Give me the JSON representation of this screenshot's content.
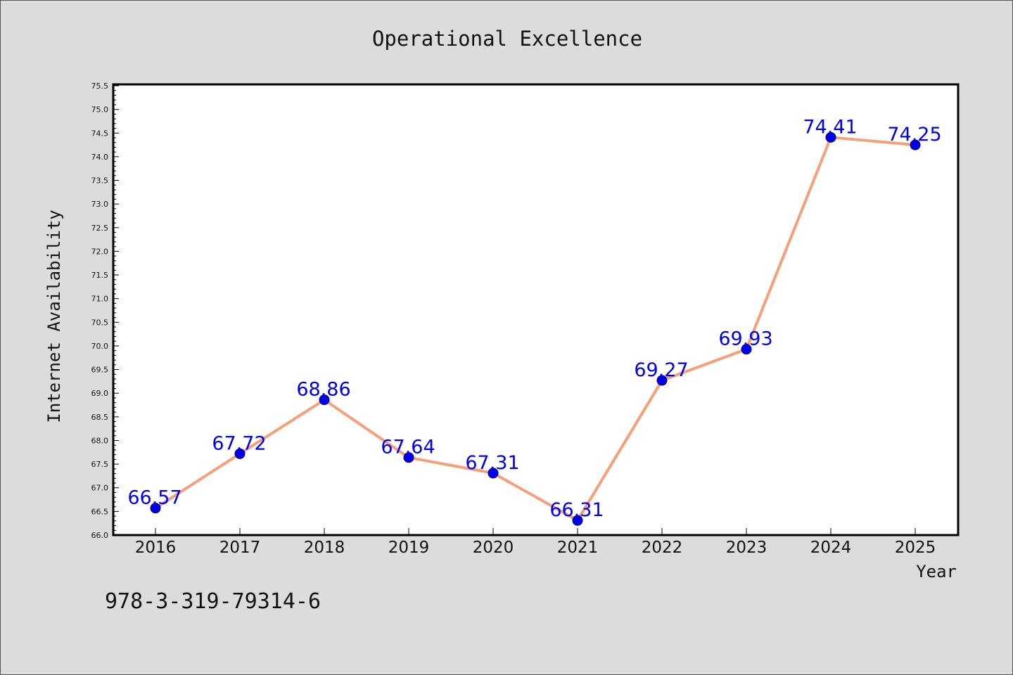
{
  "chart_data": {
    "type": "line",
    "title": "Operational Excellence",
    "xlabel": "Year",
    "ylabel": "Internet Availability",
    "x": [
      "2016",
      "2017",
      "2018",
      "2019",
      "2020",
      "2021",
      "2022",
      "2023",
      "2024",
      "2025"
    ],
    "series": [
      {
        "values": [
          66.57,
          67.72,
          68.86,
          67.64,
          67.31,
          66.31,
          69.27,
          69.93,
          74.41,
          74.25
        ],
        "data_labels": [
          "66.57",
          "67.72",
          "68.86",
          "67.64",
          "67.31",
          "66.31",
          "69.27",
          "69.93",
          "74.41",
          "74.25"
        ],
        "line_color": "#f4a07a",
        "marker_color": "#0000ee",
        "label_color": "#0000ee"
      }
    ],
    "ylim": [
      66.0,
      75.5
    ],
    "y_ticks": [
      "66.0",
      "66.5",
      "67.0",
      "67.5",
      "68.0",
      "68.5",
      "69.0",
      "69.5",
      "70.0",
      "70.5",
      "71.0",
      "71.5",
      "72.0",
      "72.5",
      "73.0",
      "73.5",
      "74.0",
      "74.5",
      "75.0",
      "75.5"
    ],
    "grid": false,
    "annotation": "978-3-319-79314-6",
    "background_color": "#dcdcdc",
    "plot_background": "#ffffff"
  }
}
